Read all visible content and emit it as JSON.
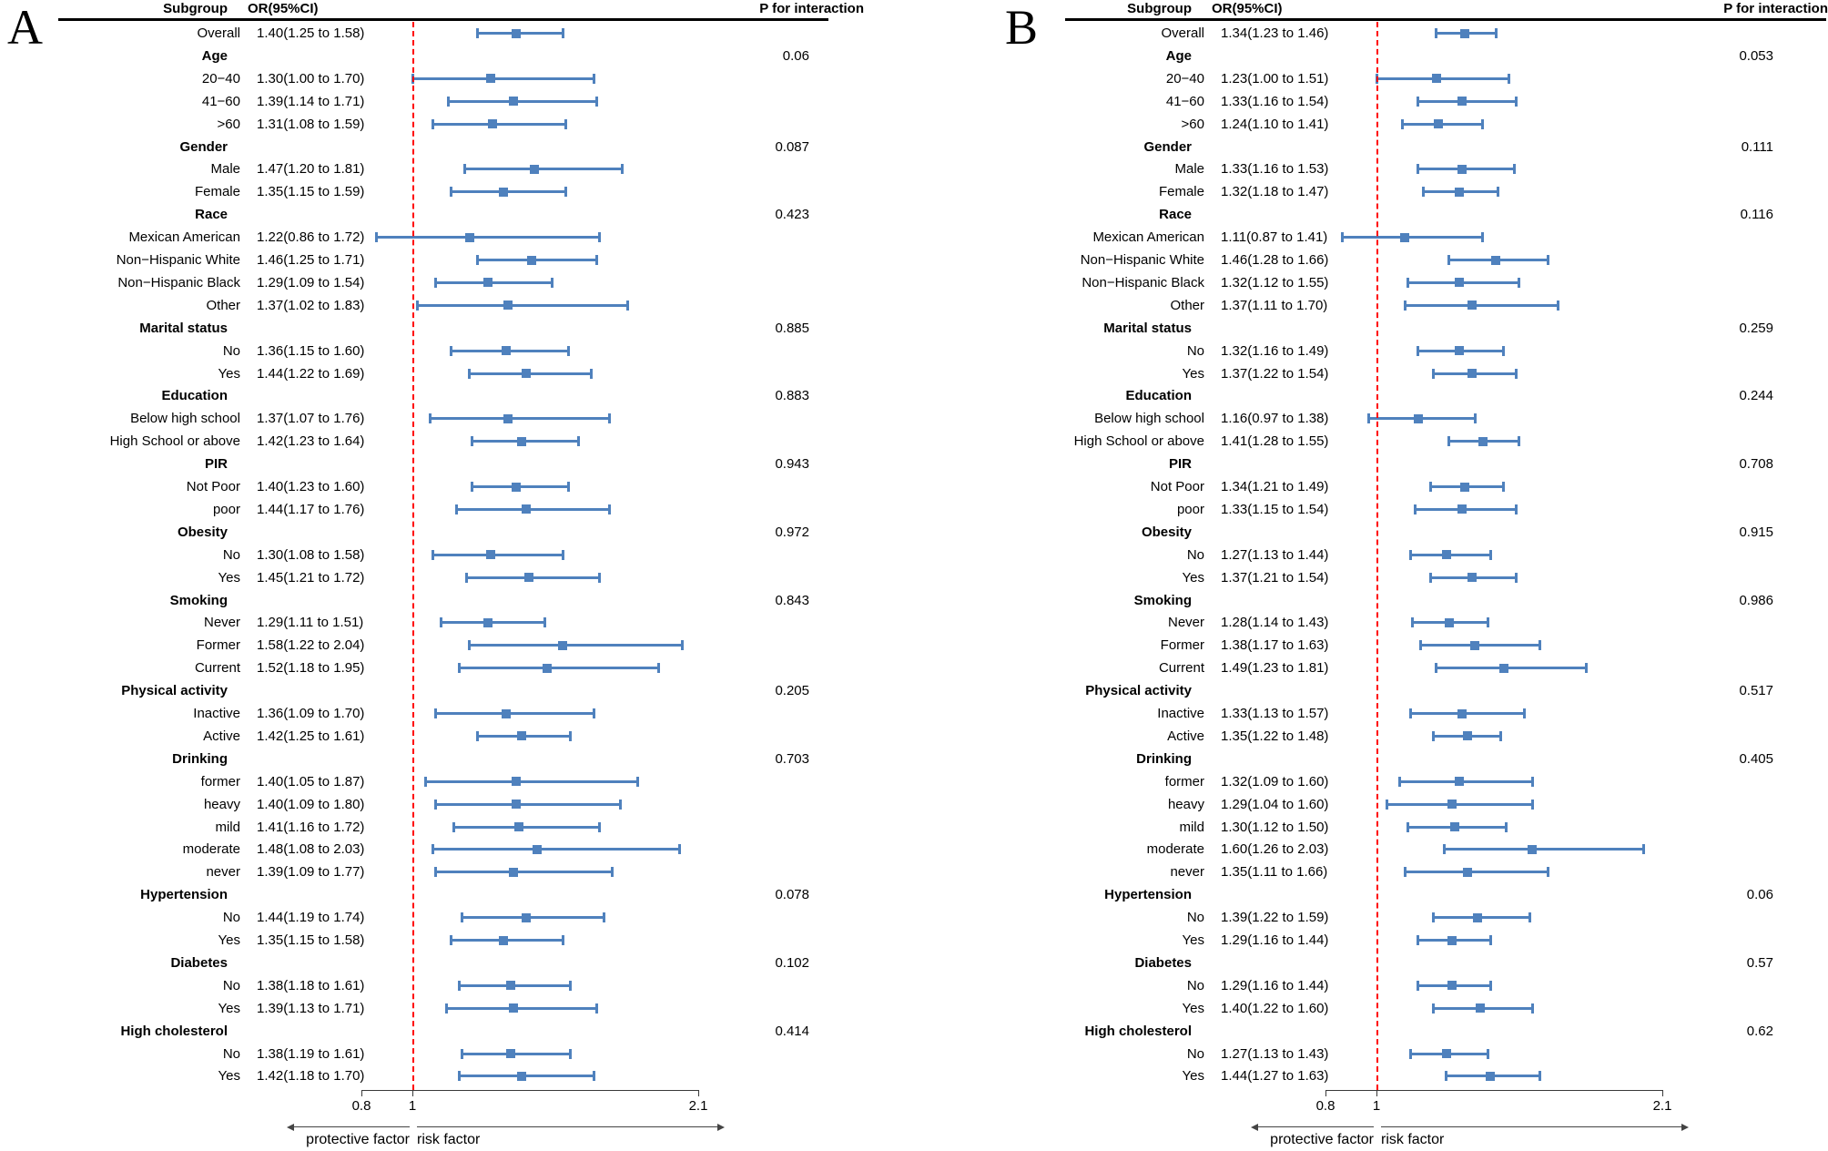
{
  "shared": {
    "columns": {
      "subgroup": "Subgroup",
      "or_ci": "OR(95%CI)",
      "p_interaction": "P for interaction"
    },
    "axis": {
      "tick_labels": [
        "0.8",
        "1",
        "2.1"
      ],
      "tick_values": [
        0.8,
        1,
        2.1
      ],
      "ref_value": 1,
      "left_arrow_label": "protective factor",
      "right_arrow_label": "risk factor"
    },
    "colors": {
      "marker": "#4f81bd",
      "ref_line": "#ff0000",
      "axis_line": "#3a3a3a"
    }
  },
  "chart_data": [
    {
      "type": "forest",
      "panel_label": "A",
      "xlim": [
        0.8,
        2.1
      ],
      "rows": [
        {
          "t": "i",
          "label": "Overall",
          "text": "1.40(1.25 to 1.58)",
          "or": 1.4,
          "lo": 1.25,
          "hi": 1.58
        },
        {
          "t": "g",
          "label": "Age",
          "p": "0.06"
        },
        {
          "t": "i",
          "label": "20−40",
          "text": "1.30(1.00 to 1.70)",
          "or": 1.3,
          "lo": 1.0,
          "hi": 1.7
        },
        {
          "t": "i",
          "label": "41−60",
          "text": "1.39(1.14 to 1.71)",
          "or": 1.39,
          "lo": 1.14,
          "hi": 1.71
        },
        {
          "t": "i",
          "label": ">60",
          "text": "1.31(1.08 to 1.59)",
          "or": 1.31,
          "lo": 1.08,
          "hi": 1.59
        },
        {
          "t": "g",
          "label": "Gender",
          "p": "0.087"
        },
        {
          "t": "i",
          "label": "Male",
          "text": "1.47(1.20 to 1.81)",
          "or": 1.47,
          "lo": 1.2,
          "hi": 1.81
        },
        {
          "t": "i",
          "label": "Female",
          "text": "1.35(1.15 to 1.59)",
          "or": 1.35,
          "lo": 1.15,
          "hi": 1.59
        },
        {
          "t": "g",
          "label": "Race",
          "p": "0.423"
        },
        {
          "t": "i",
          "label": "Mexican American",
          "text": "1.22(0.86 to 1.72)",
          "or": 1.22,
          "lo": 0.86,
          "hi": 1.72
        },
        {
          "t": "i",
          "label": "Non−Hispanic White",
          "text": "1.46(1.25 to 1.71)",
          "or": 1.46,
          "lo": 1.25,
          "hi": 1.71
        },
        {
          "t": "i",
          "label": "Non−Hispanic Black",
          "text": "1.29(1.09 to 1.54)",
          "or": 1.29,
          "lo": 1.09,
          "hi": 1.54
        },
        {
          "t": "i",
          "label": "Other",
          "text": "1.37(1.02 to 1.83)",
          "or": 1.37,
          "lo": 1.02,
          "hi": 1.83
        },
        {
          "t": "g",
          "label": "Marital status",
          "p": "0.885"
        },
        {
          "t": "i",
          "label": "No",
          "text": "1.36(1.15 to 1.60)",
          "or": 1.36,
          "lo": 1.15,
          "hi": 1.6
        },
        {
          "t": "i",
          "label": "Yes",
          "text": "1.44(1.22 to 1.69)",
          "or": 1.44,
          "lo": 1.22,
          "hi": 1.69
        },
        {
          "t": "g",
          "label": "Education",
          "p": "0.883"
        },
        {
          "t": "i",
          "label": "Below high school",
          "text": "1.37(1.07 to 1.76)",
          "or": 1.37,
          "lo": 1.07,
          "hi": 1.76
        },
        {
          "t": "i",
          "label": "High School or above",
          "text": "1.42(1.23 to 1.64)",
          "or": 1.42,
          "lo": 1.23,
          "hi": 1.64
        },
        {
          "t": "g",
          "label": "PIR",
          "p": "0.943"
        },
        {
          "t": "i",
          "label": "Not Poor",
          "text": "1.40(1.23 to 1.60)",
          "or": 1.4,
          "lo": 1.23,
          "hi": 1.6
        },
        {
          "t": "i",
          "label": "poor",
          "text": "1.44(1.17 to 1.76)",
          "or": 1.44,
          "lo": 1.17,
          "hi": 1.76
        },
        {
          "t": "g",
          "label": "Obesity",
          "p": "0.972"
        },
        {
          "t": "i",
          "label": "No",
          "text": "1.30(1.08 to 1.58)",
          "or": 1.3,
          "lo": 1.08,
          "hi": 1.58
        },
        {
          "t": "i",
          "label": "Yes",
          "text": "1.45(1.21 to 1.72)",
          "or": 1.45,
          "lo": 1.21,
          "hi": 1.72
        },
        {
          "t": "g",
          "label": "Smoking",
          "p": "0.843"
        },
        {
          "t": "i",
          "label": "Never",
          "text": "1.29(1.11 to 1.51)",
          "or": 1.29,
          "lo": 1.11,
          "hi": 1.51
        },
        {
          "t": "i",
          "label": "Former",
          "text": "1.58(1.22 to 2.04)",
          "or": 1.58,
          "lo": 1.22,
          "hi": 2.04
        },
        {
          "t": "i",
          "label": "Current",
          "text": "1.52(1.18 to 1.95)",
          "or": 1.52,
          "lo": 1.18,
          "hi": 1.95
        },
        {
          "t": "g",
          "label": "Physical activity",
          "p": "0.205"
        },
        {
          "t": "i",
          "label": "Inactive",
          "text": "1.36(1.09 to 1.70)",
          "or": 1.36,
          "lo": 1.09,
          "hi": 1.7
        },
        {
          "t": "i",
          "label": "Active",
          "text": "1.42(1.25 to 1.61)",
          "or": 1.42,
          "lo": 1.25,
          "hi": 1.61
        },
        {
          "t": "g",
          "label": "Drinking",
          "p": "0.703"
        },
        {
          "t": "i",
          "label": "former",
          "text": "1.40(1.05 to 1.87)",
          "or": 1.4,
          "lo": 1.05,
          "hi": 1.87
        },
        {
          "t": "i",
          "label": "heavy",
          "text": "1.40(1.09 to 1.80)",
          "or": 1.4,
          "lo": 1.09,
          "hi": 1.8
        },
        {
          "t": "i",
          "label": "mild",
          "text": "1.41(1.16 to 1.72)",
          "or": 1.41,
          "lo": 1.16,
          "hi": 1.72
        },
        {
          "t": "i",
          "label": "moderate",
          "text": "1.48(1.08 to 2.03)",
          "or": 1.48,
          "lo": 1.08,
          "hi": 2.03
        },
        {
          "t": "i",
          "label": "never",
          "text": "1.39(1.09 to 1.77)",
          "or": 1.39,
          "lo": 1.09,
          "hi": 1.77
        },
        {
          "t": "g",
          "label": "Hypertension",
          "p": "0.078"
        },
        {
          "t": "i",
          "label": "No",
          "text": "1.44(1.19 to 1.74)",
          "or": 1.44,
          "lo": 1.19,
          "hi": 1.74
        },
        {
          "t": "i",
          "label": "Yes",
          "text": "1.35(1.15 to 1.58)",
          "or": 1.35,
          "lo": 1.15,
          "hi": 1.58
        },
        {
          "t": "g",
          "label": "Diabetes",
          "p": "0.102"
        },
        {
          "t": "i",
          "label": "No",
          "text": "1.38(1.18 to 1.61)",
          "or": 1.38,
          "lo": 1.18,
          "hi": 1.61
        },
        {
          "t": "i",
          "label": "Yes",
          "text": "1.39(1.13 to 1.71)",
          "or": 1.39,
          "lo": 1.13,
          "hi": 1.71
        },
        {
          "t": "g",
          "label": "High cholesterol",
          "p": "0.414"
        },
        {
          "t": "i",
          "label": "No",
          "text": "1.38(1.19 to 1.61)",
          "or": 1.38,
          "lo": 1.19,
          "hi": 1.61
        },
        {
          "t": "i",
          "label": "Yes",
          "text": "1.42(1.18 to 1.70)",
          "or": 1.42,
          "lo": 1.18,
          "hi": 1.7
        }
      ]
    },
    {
      "type": "forest",
      "panel_label": "B",
      "xlim": [
        0.8,
        2.1
      ],
      "rows": [
        {
          "t": "i",
          "label": "Overall",
          "text": "1.34(1.23 to 1.46)",
          "or": 1.34,
          "lo": 1.23,
          "hi": 1.46
        },
        {
          "t": "g",
          "label": "Age",
          "p": "0.053"
        },
        {
          "t": "i",
          "label": "20−40",
          "text": "1.23(1.00 to 1.51)",
          "or": 1.23,
          "lo": 1.0,
          "hi": 1.51
        },
        {
          "t": "i",
          "label": "41−60",
          "text": "1.33(1.16 to 1.54)",
          "or": 1.33,
          "lo": 1.16,
          "hi": 1.54
        },
        {
          "t": "i",
          "label": ">60",
          "text": "1.24(1.10 to 1.41)",
          "or": 1.24,
          "lo": 1.1,
          "hi": 1.41
        },
        {
          "t": "g",
          "label": "Gender",
          "p": "0.111"
        },
        {
          "t": "i",
          "label": "Male",
          "text": "1.33(1.16 to 1.53)",
          "or": 1.33,
          "lo": 1.16,
          "hi": 1.53
        },
        {
          "t": "i",
          "label": "Female",
          "text": "1.32(1.18 to 1.47)",
          "or": 1.32,
          "lo": 1.18,
          "hi": 1.47
        },
        {
          "t": "g",
          "label": "Race",
          "p": "0.116"
        },
        {
          "t": "i",
          "label": "Mexican American",
          "text": "1.11(0.87 to 1.41)",
          "or": 1.11,
          "lo": 0.87,
          "hi": 1.41
        },
        {
          "t": "i",
          "label": "Non−Hispanic White",
          "text": "1.46(1.28 to 1.66)",
          "or": 1.46,
          "lo": 1.28,
          "hi": 1.66
        },
        {
          "t": "i",
          "label": "Non−Hispanic Black",
          "text": "1.32(1.12 to 1.55)",
          "or": 1.32,
          "lo": 1.12,
          "hi": 1.55
        },
        {
          "t": "i",
          "label": "Other",
          "text": "1.37(1.11 to 1.70)",
          "or": 1.37,
          "lo": 1.11,
          "hi": 1.7
        },
        {
          "t": "g",
          "label": "Marital status",
          "p": "0.259"
        },
        {
          "t": "i",
          "label": "No",
          "text": "1.32(1.16 to 1.49)",
          "or": 1.32,
          "lo": 1.16,
          "hi": 1.49
        },
        {
          "t": "i",
          "label": "Yes",
          "text": "1.37(1.22 to 1.54)",
          "or": 1.37,
          "lo": 1.22,
          "hi": 1.54
        },
        {
          "t": "g",
          "label": "Education",
          "p": "0.244"
        },
        {
          "t": "i",
          "label": "Below high school",
          "text": "1.16(0.97 to 1.38)",
          "or": 1.16,
          "lo": 0.97,
          "hi": 1.38
        },
        {
          "t": "i",
          "label": "High School or above",
          "text": "1.41(1.28 to 1.55)",
          "or": 1.41,
          "lo": 1.28,
          "hi": 1.55
        },
        {
          "t": "g",
          "label": "PIR",
          "p": "0.708"
        },
        {
          "t": "i",
          "label": "Not Poor",
          "text": "1.34(1.21 to 1.49)",
          "or": 1.34,
          "lo": 1.21,
          "hi": 1.49
        },
        {
          "t": "i",
          "label": "poor",
          "text": "1.33(1.15 to 1.54)",
          "or": 1.33,
          "lo": 1.15,
          "hi": 1.54
        },
        {
          "t": "g",
          "label": "Obesity",
          "p": "0.915"
        },
        {
          "t": "i",
          "label": "No",
          "text": "1.27(1.13 to 1.44)",
          "or": 1.27,
          "lo": 1.13,
          "hi": 1.44
        },
        {
          "t": "i",
          "label": "Yes",
          "text": "1.37(1.21 to 1.54)",
          "or": 1.37,
          "lo": 1.21,
          "hi": 1.54
        },
        {
          "t": "g",
          "label": "Smoking",
          "p": "0.986"
        },
        {
          "t": "i",
          "label": "Never",
          "text": "1.28(1.14 to 1.43)",
          "or": 1.28,
          "lo": 1.14,
          "hi": 1.43
        },
        {
          "t": "i",
          "label": "Former",
          "text": "1.38(1.17 to 1.63)",
          "or": 1.38,
          "lo": 1.17,
          "hi": 1.63
        },
        {
          "t": "i",
          "label": "Current",
          "text": "1.49(1.23 to 1.81)",
          "or": 1.49,
          "lo": 1.23,
          "hi": 1.81
        },
        {
          "t": "g",
          "label": "Physical activity",
          "p": "0.517"
        },
        {
          "t": "i",
          "label": "Inactive",
          "text": "1.33(1.13 to 1.57)",
          "or": 1.33,
          "lo": 1.13,
          "hi": 1.57
        },
        {
          "t": "i",
          "label": "Active",
          "text": "1.35(1.22 to 1.48)",
          "or": 1.35,
          "lo": 1.22,
          "hi": 1.48
        },
        {
          "t": "g",
          "label": "Drinking",
          "p": "0.405"
        },
        {
          "t": "i",
          "label": "former",
          "text": "1.32(1.09 to 1.60)",
          "or": 1.32,
          "lo": 1.09,
          "hi": 1.6
        },
        {
          "t": "i",
          "label": "heavy",
          "text": "1.29(1.04 to 1.60)",
          "or": 1.29,
          "lo": 1.04,
          "hi": 1.6
        },
        {
          "t": "i",
          "label": "mild",
          "text": "1.30(1.12 to 1.50)",
          "or": 1.3,
          "lo": 1.12,
          "hi": 1.5
        },
        {
          "t": "i",
          "label": "moderate",
          "text": "1.60(1.26 to 2.03)",
          "or": 1.6,
          "lo": 1.26,
          "hi": 2.03
        },
        {
          "t": "i",
          "label": "never",
          "text": "1.35(1.11 to 1.66)",
          "or": 1.35,
          "lo": 1.11,
          "hi": 1.66
        },
        {
          "t": "g",
          "label": "Hypertension",
          "p": "0.06"
        },
        {
          "t": "i",
          "label": "No",
          "text": "1.39(1.22 to 1.59)",
          "or": 1.39,
          "lo": 1.22,
          "hi": 1.59
        },
        {
          "t": "i",
          "label": "Yes",
          "text": "1.29(1.16 to 1.44)",
          "or": 1.29,
          "lo": 1.16,
          "hi": 1.44
        },
        {
          "t": "g",
          "label": "Diabetes",
          "p": "0.57"
        },
        {
          "t": "i",
          "label": "No",
          "text": "1.29(1.16 to 1.44)",
          "or": 1.29,
          "lo": 1.16,
          "hi": 1.44
        },
        {
          "t": "i",
          "label": "Yes",
          "text": "1.40(1.22 to 1.60)",
          "or": 1.4,
          "lo": 1.22,
          "hi": 1.6
        },
        {
          "t": "g",
          "label": "High cholesterol",
          "p": "0.62"
        },
        {
          "t": "i",
          "label": "No",
          "text": "1.27(1.13 to 1.43)",
          "or": 1.27,
          "lo": 1.13,
          "hi": 1.43
        },
        {
          "t": "i",
          "label": "Yes",
          "text": "1.44(1.27 to 1.63)",
          "or": 1.44,
          "lo": 1.27,
          "hi": 1.63
        }
      ]
    }
  ]
}
